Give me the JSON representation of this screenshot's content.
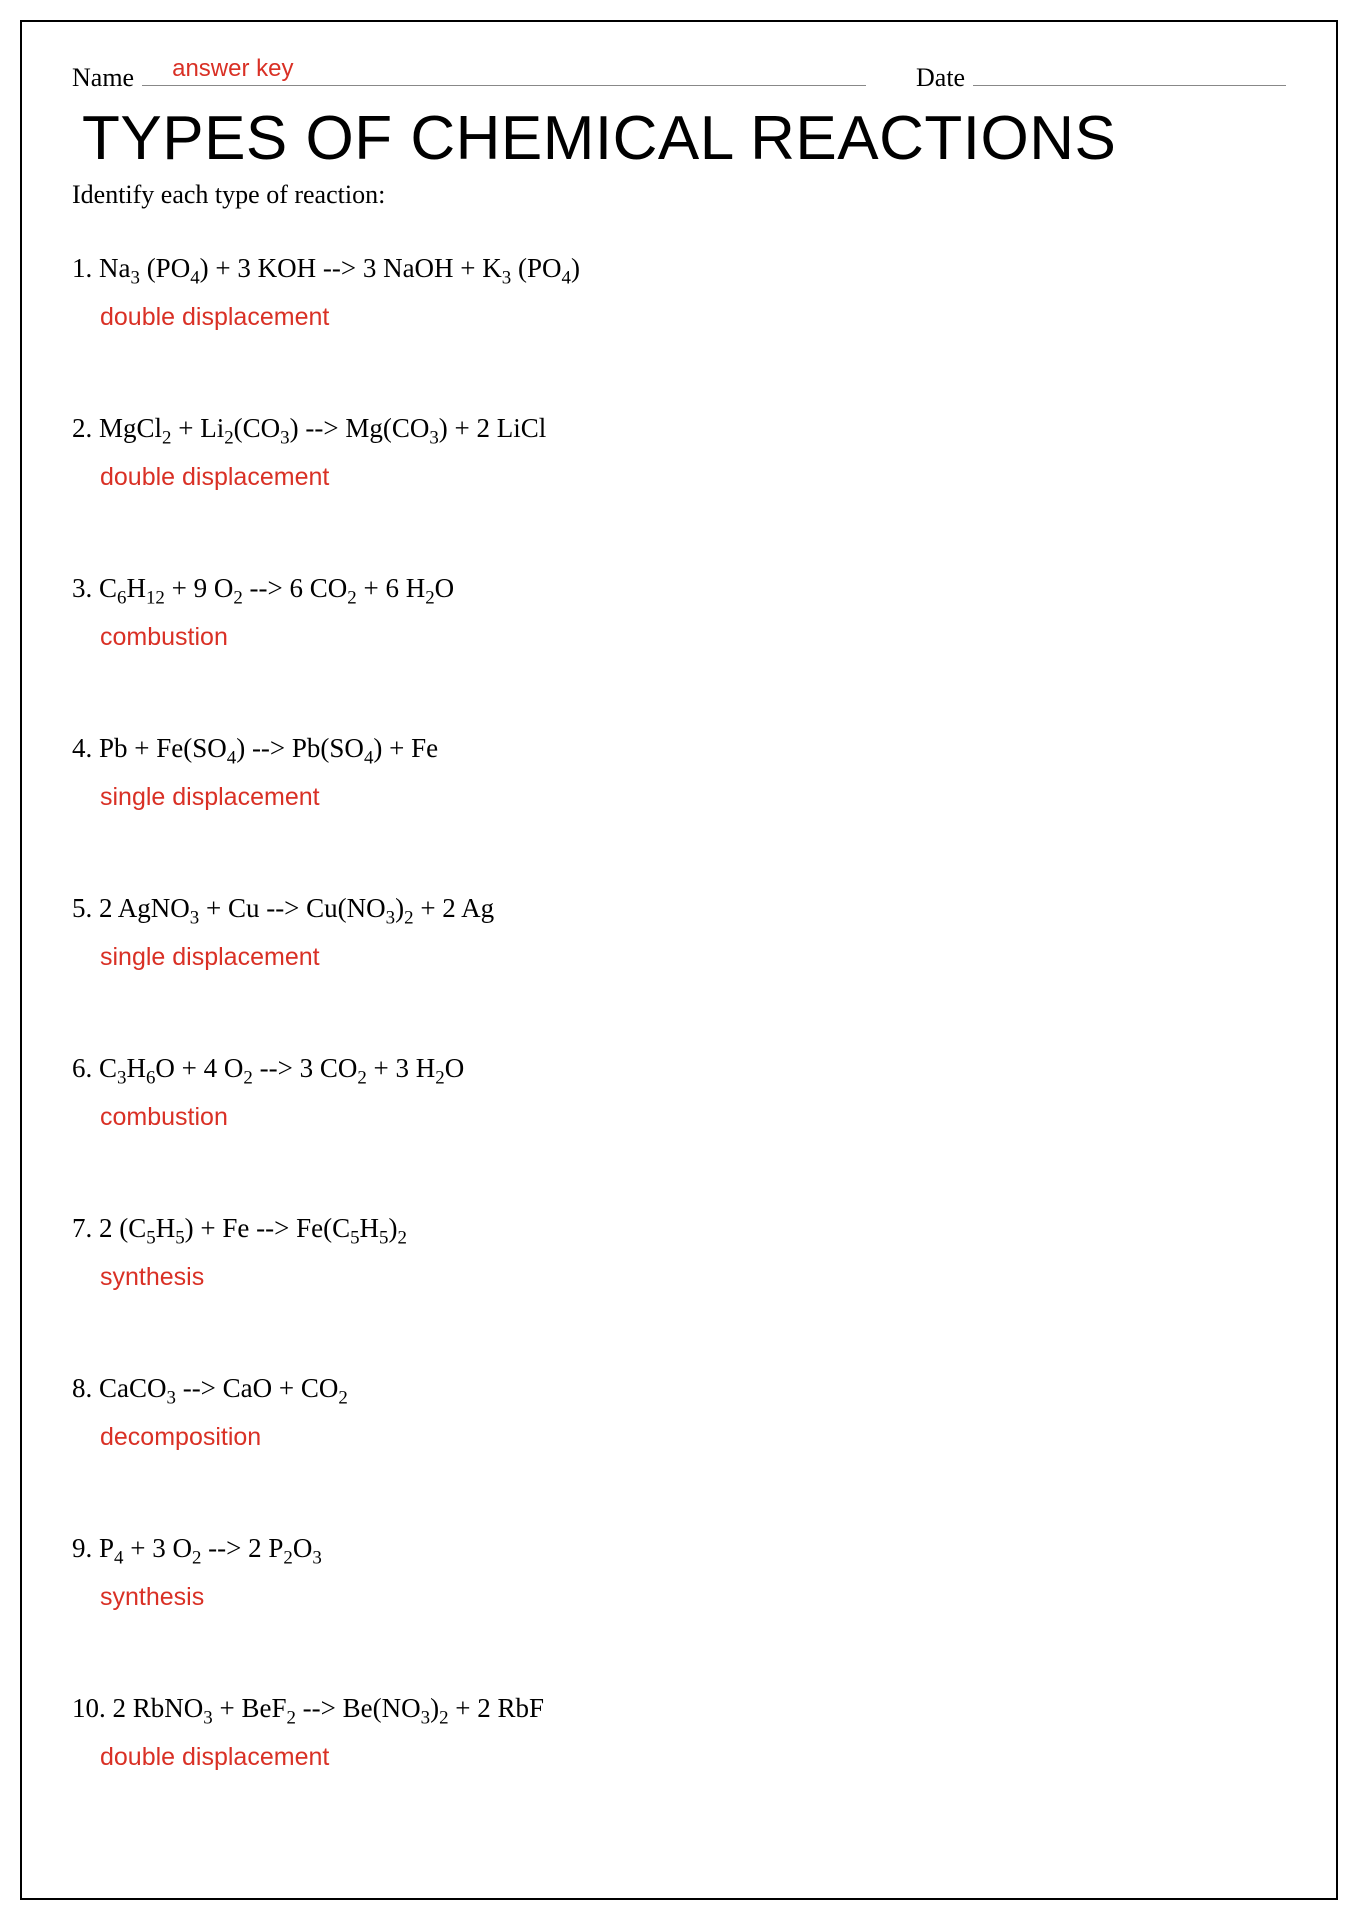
{
  "header": {
    "name_label": "Name",
    "date_label": "Date",
    "name_value": "answer key"
  },
  "title": "TYPES OF CHEMICAL REACTIONS",
  "instruction": "Identify each type of reaction:",
  "answer_color": "#d93025",
  "text_color": "#000000",
  "problems": [
    {
      "number": "1",
      "equation_html": "Na<sub>3</sub> (PO<sub>4</sub>) + 3 KOH --> 3 NaOH + K<sub>3</sub> (PO<sub>4</sub>)",
      "answer": "double displacement"
    },
    {
      "number": "2",
      "equation_html": "MgCl<sub>2</sub> + Li<sub>2</sub>(CO<sub>3</sub>) --> Mg(CO<sub>3</sub>) + 2 LiCl",
      "answer": "double displacement"
    },
    {
      "number": "3",
      "equation_html": "C<sub>6</sub>H<sub>12</sub> + 9 O<sub>2</sub> --> 6 CO<sub>2</sub> + 6 H<sub>2</sub>O",
      "answer": "combustion"
    },
    {
      "number": "4",
      "equation_html": "Pb + Fe(SO<sub>4</sub>) --> Pb(SO<sub>4</sub>) + Fe",
      "answer": "single displacement"
    },
    {
      "number": "5",
      "equation_html": "2 AgNO<sub>3</sub> + Cu --> Cu(NO<sub>3</sub>)<sub>2</sub> + 2 Ag",
      "answer": "single displacement"
    },
    {
      "number": "6",
      "equation_html": "C<sub>3</sub>H<sub>6</sub>O + 4 O<sub>2</sub> --> 3 CO<sub>2</sub> + 3 H<sub>2</sub>O",
      "answer": "combustion"
    },
    {
      "number": "7",
      "equation_html": "2 (C<sub>5</sub>H<sub>5</sub>) + Fe --> Fe(C<sub>5</sub>H<sub>5</sub>)<sub>2</sub>",
      "answer": "synthesis"
    },
    {
      "number": "8",
      "equation_html": "CaCO<sub>3</sub> --> CaO + CO<sub>2</sub>",
      "answer": "decomposition"
    },
    {
      "number": "9",
      "equation_html": "P<sub>4</sub> + 3 O<sub>2</sub> --> 2 P<sub>2</sub>O<sub>3</sub>",
      "answer": "synthesis"
    },
    {
      "number": "10",
      "equation_html": "2 RbNO<sub>3</sub> + BeF<sub>2</sub> --> Be(NO<sub>3</sub>)<sub>2</sub> + 2 RbF",
      "answer": "double displacement"
    }
  ]
}
